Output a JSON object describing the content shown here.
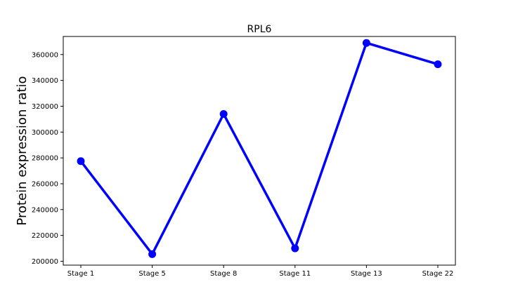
{
  "chart_data": {
    "type": "line",
    "title": "RPL6",
    "xlabel": "",
    "ylabel": "Protein expression ratio",
    "categories": [
      "Stage 1",
      "Stage 5",
      "Stage 8",
      "Stage 11",
      "Stage 13",
      "Stage 22"
    ],
    "series": [
      {
        "values": [
          277500,
          205500,
          314000,
          210000,
          369000,
          352500
        ],
        "color": "#0000ff"
      }
    ],
    "ylim": [
      197000,
      374000
    ],
    "yticks": [
      200000,
      220000,
      240000,
      260000,
      280000,
      300000,
      320000,
      340000,
      360000
    ],
    "grid": false,
    "legend": "none"
  }
}
